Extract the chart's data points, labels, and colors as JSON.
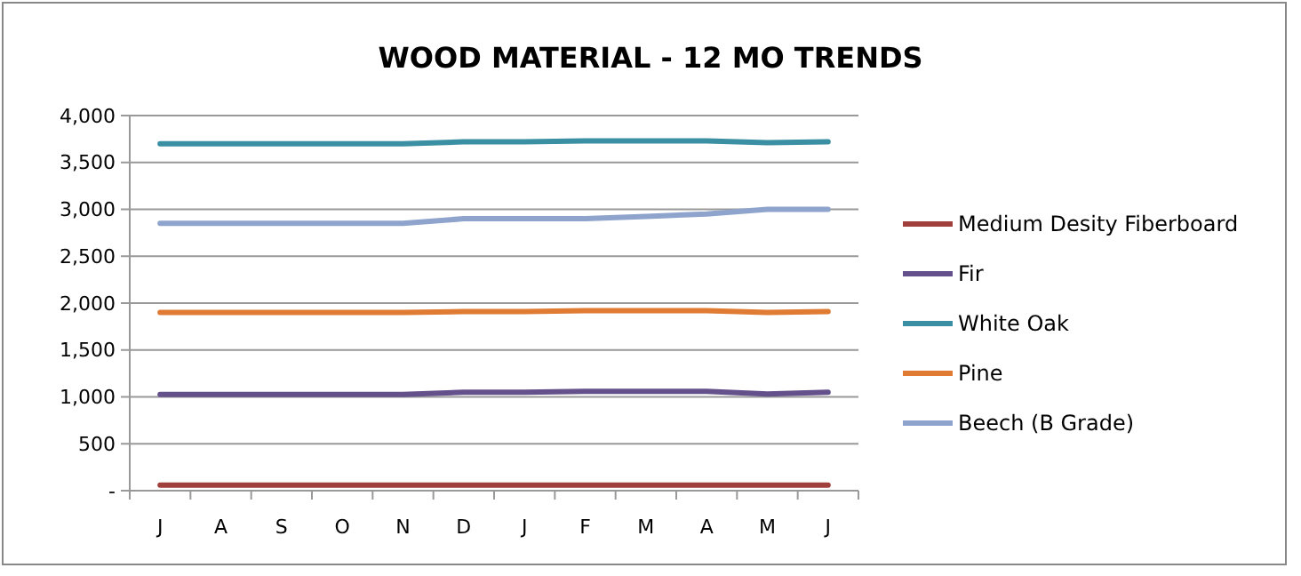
{
  "chart_data": {
    "type": "line",
    "title": "WOOD MATERIAL - 12 MO TRENDS",
    "categories": [
      "J",
      "A",
      "S",
      "O",
      "N",
      "D",
      "J",
      "F",
      "M",
      "A",
      "M",
      "J"
    ],
    "series": [
      {
        "name": "Medium Desity Fiberboard",
        "color": "#a0403c",
        "values": [
          60,
          60,
          60,
          60,
          60,
          60,
          60,
          60,
          60,
          60,
          60,
          60
        ]
      },
      {
        "name": "Fir",
        "color": "#64508a",
        "values": [
          1025,
          1025,
          1025,
          1025,
          1025,
          1050,
          1050,
          1060,
          1060,
          1060,
          1030,
          1050
        ]
      },
      {
        "name": "White Oak",
        "color": "#3a8fa3",
        "values": [
          3700,
          3700,
          3700,
          3700,
          3700,
          3720,
          3720,
          3730,
          3730,
          3730,
          3710,
          3720
        ]
      },
      {
        "name": "Pine",
        "color": "#e07b33",
        "values": [
          1900,
          1900,
          1900,
          1900,
          1900,
          1910,
          1910,
          1920,
          1920,
          1920,
          1900,
          1910
        ]
      },
      {
        "name": "Beech (B Grade)",
        "color": "#8ea4cc",
        "values": [
          2850,
          2850,
          2850,
          2850,
          2850,
          2900,
          2900,
          2900,
          2925,
          2950,
          3000,
          3000
        ]
      }
    ],
    "ylim": [
      0,
      4000
    ],
    "yticks": [
      {
        "value": 0,
        "label": "-"
      },
      {
        "value": 500,
        "label": "500"
      },
      {
        "value": 1000,
        "label": "1,000"
      },
      {
        "value": 1500,
        "label": "1,500"
      },
      {
        "value": 2000,
        "label": "2,000"
      },
      {
        "value": 2500,
        "label": "2,500"
      },
      {
        "value": 3000,
        "label": "3,000"
      },
      {
        "value": 3500,
        "label": "3,500"
      },
      {
        "value": 4000,
        "label": "4,000"
      }
    ],
    "grid": "y",
    "legend": "right",
    "marker": "none",
    "line_style": "solid"
  }
}
